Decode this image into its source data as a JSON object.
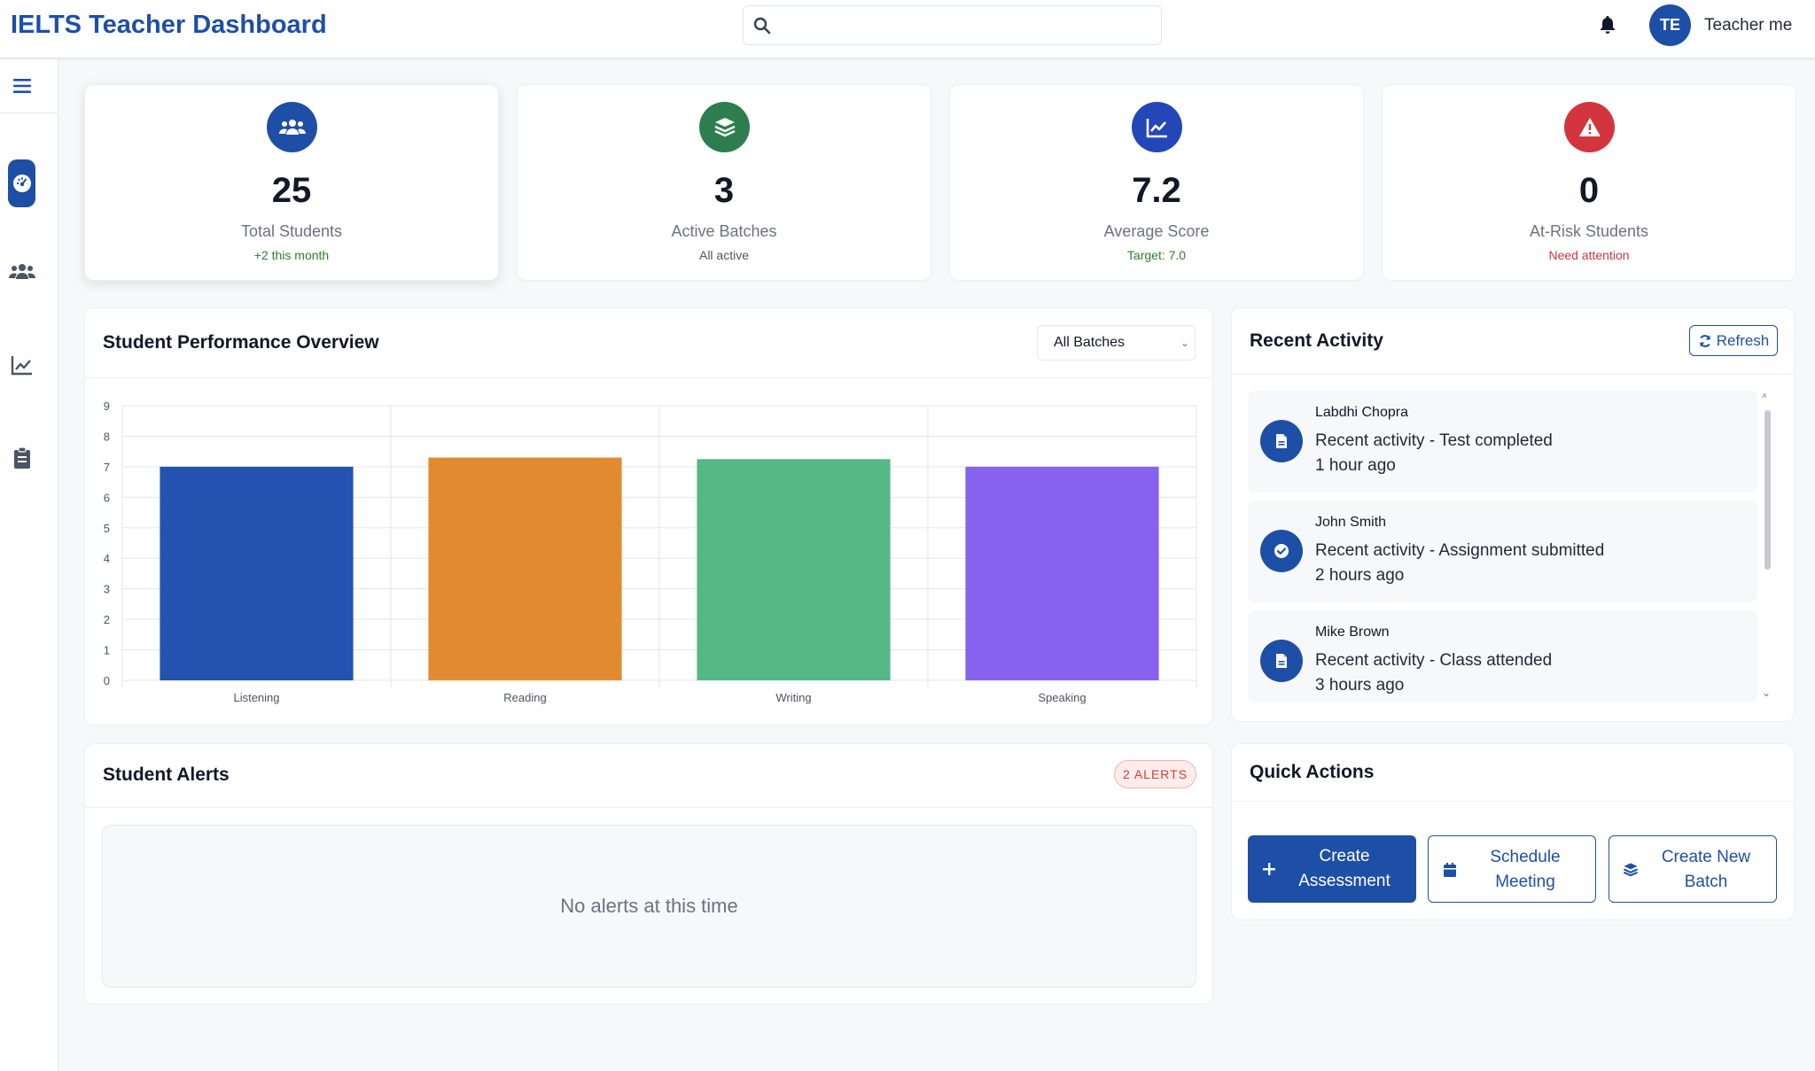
{
  "header": {
    "app_title": "IELTS Teacher Dashboard",
    "search": {
      "value": "",
      "placeholder": ""
    },
    "user": {
      "initials": "TE",
      "name": "Teacher me"
    }
  },
  "sidebar": {
    "items": [
      {
        "icon": "menu-icon"
      },
      {
        "icon": "dashboard-icon",
        "active": true
      },
      {
        "icon": "students-icon"
      },
      {
        "icon": "analytics-icon"
      },
      {
        "icon": "assessments-icon"
      }
    ]
  },
  "stats": [
    {
      "value": "25",
      "label": "Total Students",
      "sub": "+2 this month",
      "icon": "users-icon",
      "color": "#1e4fa6",
      "sub_color": "#2e7d32"
    },
    {
      "value": "3",
      "label": "Active Batches",
      "sub": "All active",
      "icon": "layers-icon",
      "color": "#2e7d4f",
      "sub_color": "#4b5563"
    },
    {
      "value": "7.2",
      "label": "Average Score",
      "sub": "Target: 7.0",
      "icon": "chart-line-icon",
      "color": "#2447b8",
      "sub_color": "#2e7d32"
    },
    {
      "value": "0",
      "label": "At-Risk Students",
      "sub": "Need attention",
      "icon": "warning-icon",
      "color": "#d3353f",
      "sub_color": "#d3353f"
    }
  ],
  "performance": {
    "title": "Student Performance Overview",
    "batch_filter": {
      "selected": "All Batches"
    }
  },
  "chart_data": {
    "type": "bar",
    "categories": [
      "Listening",
      "Reading",
      "Writing",
      "Speaking"
    ],
    "values": [
      7.0,
      7.3,
      7.25,
      7.0
    ],
    "colors": [
      "#2352b0",
      "#e28a32",
      "#55b886",
      "#8662ee"
    ],
    "ylim": [
      0,
      9
    ],
    "yticks": [
      "0",
      "1",
      "2",
      "3",
      "4",
      "5",
      "6",
      "7",
      "8",
      "9"
    ],
    "grid": true,
    "title": "",
    "xlabel": "",
    "ylabel": ""
  },
  "activity": {
    "title": "Recent Activity",
    "refresh_label": "Refresh",
    "items": [
      {
        "name": "Labdhi Chopra",
        "text": "Recent activity - Test completed",
        "time": "1 hour ago",
        "icon": "document-icon"
      },
      {
        "name": "John Smith",
        "text": "Recent activity - Assignment submitted",
        "time": "2 hours ago",
        "icon": "check-circle-icon"
      },
      {
        "name": "Mike Brown",
        "text": "Recent activity - Class attended",
        "time": "3 hours ago",
        "icon": "document-icon"
      }
    ]
  },
  "alerts": {
    "title": "Student Alerts",
    "badge": "2 ALERTS",
    "empty_text": "No alerts at this time"
  },
  "quick_actions": {
    "title": "Quick Actions",
    "buttons": [
      {
        "label": "Create Assessment",
        "icon": "plus-icon"
      },
      {
        "label": "Schedule Meeting",
        "icon": "calendar-icon"
      },
      {
        "label": "Create New Batch",
        "icon": "layers-icon"
      }
    ]
  }
}
